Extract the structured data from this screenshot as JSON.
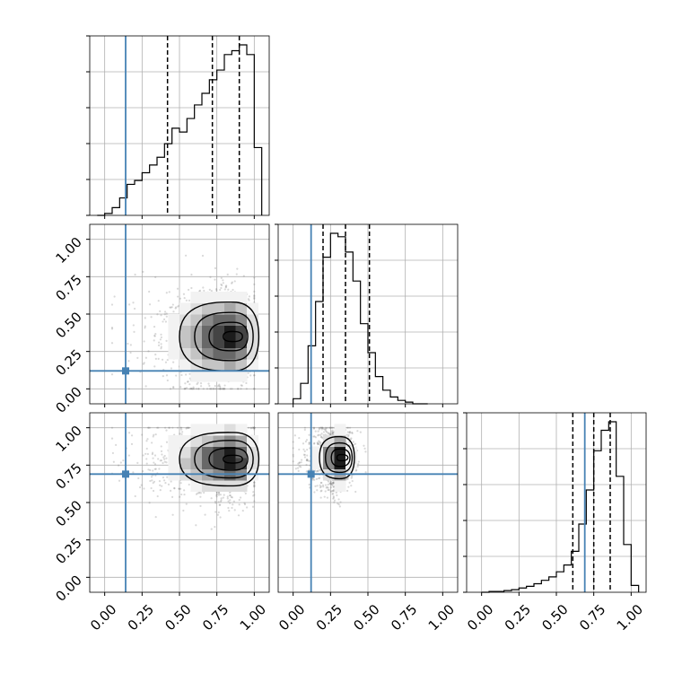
{
  "chart_data": {
    "type": "corner",
    "parameters": [
      "",
      "",
      ""
    ],
    "truths": [
      0.14,
      0.12,
      0.69
    ],
    "truth_color": "#4682b4",
    "axis_range": [
      -0.1,
      1.1
    ],
    "ticks": [
      0.0,
      0.25,
      0.5,
      0.75,
      1.0
    ],
    "tick_labels": [
      "0.00",
      "0.25",
      "0.50",
      "0.75",
      "1.00"
    ],
    "grid": true,
    "histograms": [
      {
        "param": 0,
        "bin_edges": [
          -0.05,
          0.0,
          0.05,
          0.1,
          0.15,
          0.2,
          0.25,
          0.3,
          0.35,
          0.4,
          0.45,
          0.5,
          0.55,
          0.6,
          0.65,
          0.7,
          0.75,
          0.8,
          0.85,
          0.9,
          0.95,
          1.0,
          1.05
        ],
        "counts": [
          0.0,
          0.01,
          0.04,
          0.09,
          0.16,
          0.18,
          0.22,
          0.26,
          0.3,
          0.37,
          0.45,
          0.43,
          0.5,
          0.57,
          0.63,
          0.7,
          0.75,
          0.83,
          0.85,
          0.88,
          0.83,
          0.35
        ],
        "quantiles": [
          0.42,
          0.72,
          0.9
        ]
      },
      {
        "param": 1,
        "bin_edges": [
          0.0,
          0.05,
          0.1,
          0.15,
          0.2,
          0.25,
          0.3,
          0.35,
          0.4,
          0.45,
          0.5,
          0.55,
          0.6,
          0.65,
          0.7,
          0.75,
          0.8,
          0.85,
          0.9
        ],
        "counts": [
          0.03,
          0.12,
          0.34,
          0.6,
          0.86,
          1.0,
          0.98,
          0.89,
          0.72,
          0.47,
          0.3,
          0.16,
          0.08,
          0.04,
          0.02,
          0.01,
          0.0,
          0.0
        ],
        "quantiles": [
          0.2,
          0.35,
          0.51
        ]
      },
      {
        "param": 2,
        "bin_edges": [
          0.0,
          0.05,
          0.1,
          0.15,
          0.2,
          0.25,
          0.3,
          0.35,
          0.4,
          0.45,
          0.5,
          0.55,
          0.6,
          0.65,
          0.7,
          0.75,
          0.8,
          0.85,
          0.9,
          0.95,
          1.0,
          1.05
        ],
        "counts": [
          0.0,
          0.005,
          0.005,
          0.01,
          0.015,
          0.025,
          0.035,
          0.05,
          0.07,
          0.09,
          0.12,
          0.16,
          0.24,
          0.4,
          0.6,
          0.83,
          0.95,
          1.0,
          0.68,
          0.28,
          0.04
        ],
        "quantiles": [
          0.61,
          0.75,
          0.86
        ]
      }
    ],
    "joints": [
      {
        "x_param": 0,
        "y_param": 1,
        "center": [
          0.86,
          0.35
        ],
        "spread": [
          0.3,
          0.18
        ],
        "x_range": [
          0.05,
          1.0
        ],
        "y_range": [
          0.0,
          1.0
        ]
      },
      {
        "x_param": 0,
        "y_param": 2,
        "center": [
          0.86,
          0.79
        ],
        "spread": [
          0.3,
          0.14
        ],
        "x_range": [
          0.05,
          1.0
        ],
        "y_range": [
          0.25,
          1.0
        ]
      },
      {
        "x_param": 1,
        "y_param": 2,
        "center": [
          0.32,
          0.8
        ],
        "spread": [
          0.12,
          0.11
        ],
        "x_range": [
          0.0,
          0.85
        ],
        "y_range": [
          0.35,
          1.0
        ]
      }
    ]
  }
}
